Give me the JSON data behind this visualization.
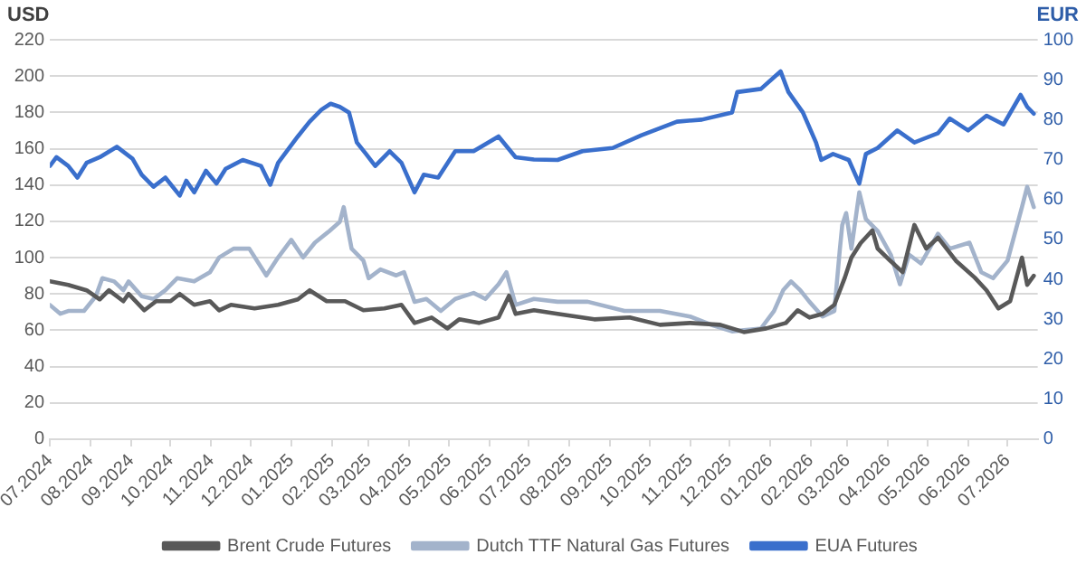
{
  "chart_data": {
    "type": "line",
    "ylabel": "USD",
    "y2label": "EUR",
    "grid": "y",
    "legend": "bottom",
    "ylim": [
      0,
      220
    ],
    "yticks": [
      0,
      20,
      40,
      60,
      80,
      100,
      120,
      140,
      160,
      180,
      200,
      220
    ],
    "y2lim": [
      0,
      100
    ],
    "y2ticks": [
      0,
      10,
      20,
      30,
      40,
      50,
      60,
      70,
      80,
      90,
      100
    ],
    "xlim": [
      "2024-07-01",
      "2026-07-24"
    ],
    "xticks": [
      {
        "value": "2024-07-01",
        "label": "07.2024"
      },
      {
        "value": "2024-08-01",
        "label": "08.2024"
      },
      {
        "value": "2024-09-01",
        "label": "09.2024"
      },
      {
        "value": "2024-10-01",
        "label": "10.2024"
      },
      {
        "value": "2024-11-01",
        "label": "11.2024"
      },
      {
        "value": "2024-12-01",
        "label": "12.2024"
      },
      {
        "value": "2025-01-01",
        "label": "01.2025"
      },
      {
        "value": "2025-02-01",
        "label": "02.2025"
      },
      {
        "value": "2025-03-01",
        "label": "03.2025"
      },
      {
        "value": "2025-04-01",
        "label": "04.2025"
      },
      {
        "value": "2025-05-01",
        "label": "05.2025"
      },
      {
        "value": "2025-06-01",
        "label": "06.2025"
      },
      {
        "value": "2025-07-01",
        "label": "07.2025"
      },
      {
        "value": "2025-08-01",
        "label": "08.2025"
      },
      {
        "value": "2025-09-01",
        "label": "09.2025"
      },
      {
        "value": "2025-10-01",
        "label": "10.2025"
      },
      {
        "value": "2025-11-01",
        "label": "11.2025"
      },
      {
        "value": "2025-12-01",
        "label": "12.2025"
      },
      {
        "value": "2026-01-01",
        "label": "01.2026"
      },
      {
        "value": "2026-02-01",
        "label": "02.2026"
      },
      {
        "value": "2026-03-01",
        "label": "03.2026"
      },
      {
        "value": "2026-04-01",
        "label": "04.2026"
      },
      {
        "value": "2026-05-01",
        "label": "05.2026"
      },
      {
        "value": "2026-06-01",
        "label": "06.2026"
      },
      {
        "value": "2026-07-01",
        "label": "07.2026"
      }
    ],
    "series": [
      {
        "name": "Brent Crude Futures",
        "color": "#595959",
        "x": [
          "2024-07-01",
          "2024-07-15",
          "2024-07-29",
          "2024-08-08",
          "2024-08-15",
          "2024-08-26",
          "2024-08-30",
          "2024-09-11",
          "2024-09-20",
          "2024-10-01",
          "2024-10-08",
          "2024-10-19",
          "2024-10-31",
          "2024-11-07",
          "2024-11-16",
          "2024-12-04",
          "2024-12-22",
          "2025-01-06",
          "2025-01-15",
          "2025-01-28",
          "2025-02-11",
          "2025-02-25",
          "2025-03-13",
          "2025-03-26",
          "2025-04-05",
          "2025-04-18",
          "2025-04-30",
          "2025-05-09",
          "2025-05-24",
          "2025-06-08",
          "2025-06-16",
          "2025-06-21",
          "2025-07-05",
          "2025-07-23",
          "2025-08-20",
          "2025-09-16",
          "2025-10-09",
          "2025-11-01",
          "2025-11-24",
          "2025-12-12",
          "2025-12-29",
          "2026-01-13",
          "2026-01-22",
          "2026-01-31",
          "2026-02-10",
          "2026-02-19",
          "2026-02-27",
          "2026-03-04",
          "2026-03-11",
          "2026-03-20",
          "2026-03-24",
          "2026-04-03",
          "2026-04-12",
          "2026-04-21",
          "2026-04-30",
          "2026-05-09",
          "2026-05-23",
          "2026-06-06",
          "2026-06-15",
          "2026-06-24",
          "2026-07-03",
          "2026-07-12",
          "2026-07-16",
          "2026-07-21"
        ],
        "values": [
          87,
          85,
          82,
          77,
          82,
          76,
          80,
          71,
          76,
          76,
          80,
          74,
          76,
          71,
          74,
          72,
          74,
          77,
          82,
          76,
          76,
          71,
          72,
          74,
          64,
          67,
          61,
          66,
          64,
          67,
          79,
          69,
          71,
          69,
          66,
          67,
          63,
          64,
          63,
          59,
          61,
          64,
          71,
          67,
          69,
          74,
          89,
          100,
          108,
          115,
          105,
          98,
          92,
          118,
          105,
          111,
          98,
          89,
          82,
          72,
          76,
          100,
          85,
          90
        ]
      },
      {
        "name": "Dutch TTF Natural Gas Futures",
        "color": "#a3b3cb",
        "axis": "y2",
        "x": [
          "2024-07-01",
          "2024-07-09",
          "2024-07-15",
          "2024-07-27",
          "2024-08-05",
          "2024-08-10",
          "2024-08-19",
          "2024-08-26",
          "2024-08-30",
          "2024-09-09",
          "2024-09-18",
          "2024-09-27",
          "2024-10-06",
          "2024-10-19",
          "2024-10-31",
          "2024-11-07",
          "2024-11-18",
          "2024-11-30",
          "2024-12-13",
          "2024-12-22",
          "2025-01-01",
          "2025-01-10",
          "2025-01-19",
          "2025-01-30",
          "2025-02-07",
          "2025-02-10",
          "2025-02-16",
          "2025-02-25",
          "2025-03-01",
          "2025-03-10",
          "2025-03-22",
          "2025-03-28",
          "2025-04-05",
          "2025-04-14",
          "2025-04-25",
          "2025-05-06",
          "2025-05-20",
          "2025-05-29",
          "2025-06-08",
          "2025-06-14",
          "2025-06-21",
          "2025-07-05",
          "2025-07-23",
          "2025-08-15",
          "2025-09-12",
          "2025-10-09",
          "2025-11-01",
          "2025-11-19",
          "2025-12-03",
          "2025-12-25",
          "2026-01-04",
          "2026-01-11",
          "2026-01-17",
          "2026-01-24",
          "2026-01-31",
          "2026-02-10",
          "2026-02-19",
          "2026-02-23",
          "2026-02-25",
          "2026-02-28",
          "2026-03-04",
          "2026-03-10",
          "2026-03-15",
          "2026-03-24",
          "2026-04-03",
          "2026-04-10",
          "2026-04-17",
          "2026-04-26",
          "2026-05-09",
          "2026-05-18",
          "2026-06-02",
          "2026-06-11",
          "2026-06-20",
          "2026-07-01",
          "2026-07-12",
          "2026-07-16",
          "2026-07-21"
        ],
        "values": [
          33.6,
          31.4,
          32.1,
          32.1,
          35.8,
          40.3,
          39.5,
          37.3,
          39.5,
          35.8,
          35.1,
          37.3,
          40.3,
          39.5,
          41.8,
          45.5,
          47.7,
          47.7,
          41.0,
          45.5,
          49.9,
          45.5,
          49.2,
          52.1,
          54.4,
          58.1,
          47.7,
          44.7,
          40.3,
          42.5,
          41.0,
          41.8,
          34.4,
          35.1,
          32.1,
          35.1,
          36.6,
          35.1,
          38.8,
          41.8,
          33.6,
          35.1,
          34.4,
          34.4,
          32.1,
          32.1,
          30.7,
          28.4,
          27.0,
          27.7,
          32.1,
          37.3,
          39.5,
          37.3,
          34.4,
          30.7,
          32.1,
          46.9,
          53.6,
          56.6,
          47.7,
          61.8,
          55.1,
          52.1,
          46.2,
          38.8,
          46.2,
          44.0,
          51.4,
          47.7,
          49.2,
          41.8,
          40.3,
          44.7,
          58.1,
          63.2,
          58.1
        ]
      },
      {
        "name": "EUA Futures",
        "color": "#3a6fcc",
        "axis": "y2",
        "x": [
          "2024-07-01",
          "2024-07-06",
          "2024-07-15",
          "2024-07-22",
          "2024-07-29",
          "2024-08-08",
          "2024-08-21",
          "2024-09-02",
          "2024-09-09",
          "2024-09-18",
          "2024-09-27",
          "2024-10-08",
          "2024-10-13",
          "2024-10-19",
          "2024-10-28",
          "2024-11-05",
          "2024-11-12",
          "2024-11-25",
          "2024-12-09",
          "2024-12-16",
          "2024-12-22",
          "2025-01-06",
          "2025-01-15",
          "2025-01-24",
          "2025-01-31",
          "2025-02-07",
          "2025-02-14",
          "2025-02-20",
          "2025-02-27",
          "2025-03-06",
          "2025-03-17",
          "2025-03-26",
          "2025-04-05",
          "2025-04-12",
          "2025-04-23",
          "2025-05-06",
          "2025-05-20",
          "2025-06-08",
          "2025-06-21",
          "2025-07-05",
          "2025-07-23",
          "2025-08-11",
          "2025-09-03",
          "2025-09-25",
          "2025-10-22",
          "2025-11-10",
          "2025-12-03",
          "2025-12-07",
          "2025-12-25",
          "2026-01-09",
          "2026-01-15",
          "2026-01-26",
          "2026-02-05",
          "2026-02-09",
          "2026-02-18",
          "2026-03-02",
          "2026-03-10",
          "2026-03-15",
          "2026-03-24",
          "2026-04-08",
          "2026-04-21",
          "2026-05-09",
          "2026-05-18",
          "2026-06-01",
          "2026-06-15",
          "2026-06-28",
          "2026-07-11",
          "2026-07-16",
          "2026-07-21"
        ],
        "values": [
          68.4,
          70.6,
          68.4,
          65.5,
          69.2,
          70.6,
          73.2,
          70.2,
          66.2,
          63.2,
          65.5,
          61.0,
          64.7,
          61.8,
          67.2,
          64.0,
          67.7,
          69.9,
          68.4,
          63.7,
          69.2,
          75.8,
          79.5,
          82.5,
          84.0,
          83.2,
          81.8,
          74.3,
          71.4,
          68.4,
          72.1,
          69.2,
          61.8,
          66.2,
          65.5,
          72.1,
          72.1,
          75.8,
          70.6,
          70.0,
          69.9,
          72.1,
          72.9,
          76.1,
          79.5,
          80.0,
          81.8,
          86.9,
          87.7,
          92.1,
          86.9,
          81.8,
          74.3,
          69.9,
          71.4,
          69.9,
          64.0,
          71.4,
          72.9,
          77.3,
          74.3,
          76.6,
          80.3,
          77.3,
          81.0,
          78.8,
          86.2,
          83.2,
          81.5
        ]
      }
    ]
  }
}
